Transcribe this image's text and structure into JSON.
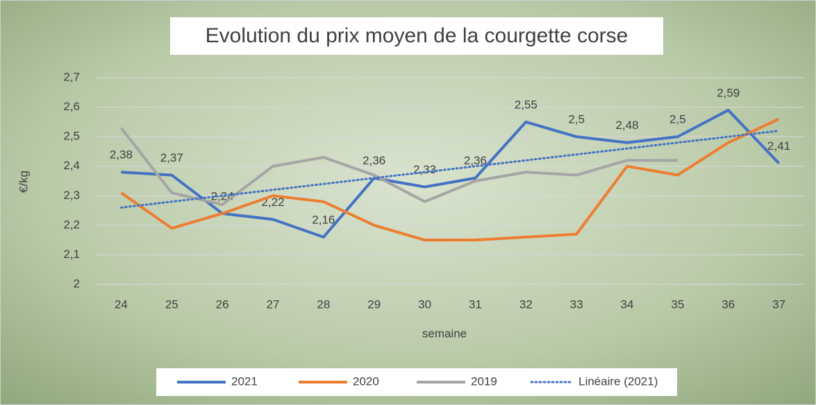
{
  "chart_data": {
    "type": "line",
    "title": "Evolution du prix moyen de la courgette corse",
    "x_label": "semaine",
    "y_label": "€/kg",
    "categories": [
      "24",
      "25",
      "26",
      "27",
      "28",
      "29",
      "30",
      "31",
      "32",
      "33",
      "34",
      "35",
      "36",
      "37"
    ],
    "series": [
      {
        "name": "2021",
        "color": "#4472c4",
        "style": "solid",
        "values": [
          2.38,
          2.37,
          2.24,
          2.22,
          2.16,
          2.36,
          2.33,
          2.36,
          2.55,
          2.5,
          2.48,
          2.5,
          2.59,
          2.41
        ],
        "value_labels": [
          "2,38",
          "2,37",
          "2,24",
          "2,22",
          "2,16",
          "2,36",
          "2,33",
          "2,36",
          "2,55",
          "2,5",
          "2,48",
          "2,5",
          "2,59",
          "2,41"
        ]
      },
      {
        "name": "2020",
        "color": "#ed7d31",
        "style": "solid",
        "values": [
          2.31,
          2.19,
          2.24,
          2.3,
          2.28,
          2.2,
          2.15,
          2.15,
          2.16,
          2.17,
          2.4,
          2.37,
          2.48,
          2.56
        ]
      },
      {
        "name": "2019",
        "color": "#a5a5a5",
        "style": "solid",
        "values": [
          2.53,
          2.31,
          2.27,
          2.4,
          2.43,
          2.37,
          2.28,
          2.35,
          2.38,
          2.37,
          2.42,
          2.42,
          null,
          null
        ]
      },
      {
        "name": "Linéaire (2021)",
        "color": "#4472c4",
        "style": "dotted",
        "values": [
          2.26,
          2.28,
          2.3,
          2.32,
          2.34,
          2.36,
          2.38,
          2.4,
          2.42,
          2.44,
          2.46,
          2.48,
          2.5,
          2.52
        ]
      }
    ],
    "ylim": [
      2,
      2.7
    ],
    "yticks": [
      2,
      {
        "value": 2.1,
        "label": "2,1"
      },
      {
        "value": 2.2,
        "label": "2,2"
      },
      {
        "value": 2.3,
        "label": "2,3"
      },
      {
        "value": 2.4,
        "label": "2,4"
      },
      {
        "value": 2.5,
        "label": "2,5"
      },
      {
        "value": 2.6,
        "label": "2,6"
      },
      {
        "value": 2.7,
        "label": "2,7"
      }
    ],
    "grid": true,
    "legend": "bottom"
  }
}
